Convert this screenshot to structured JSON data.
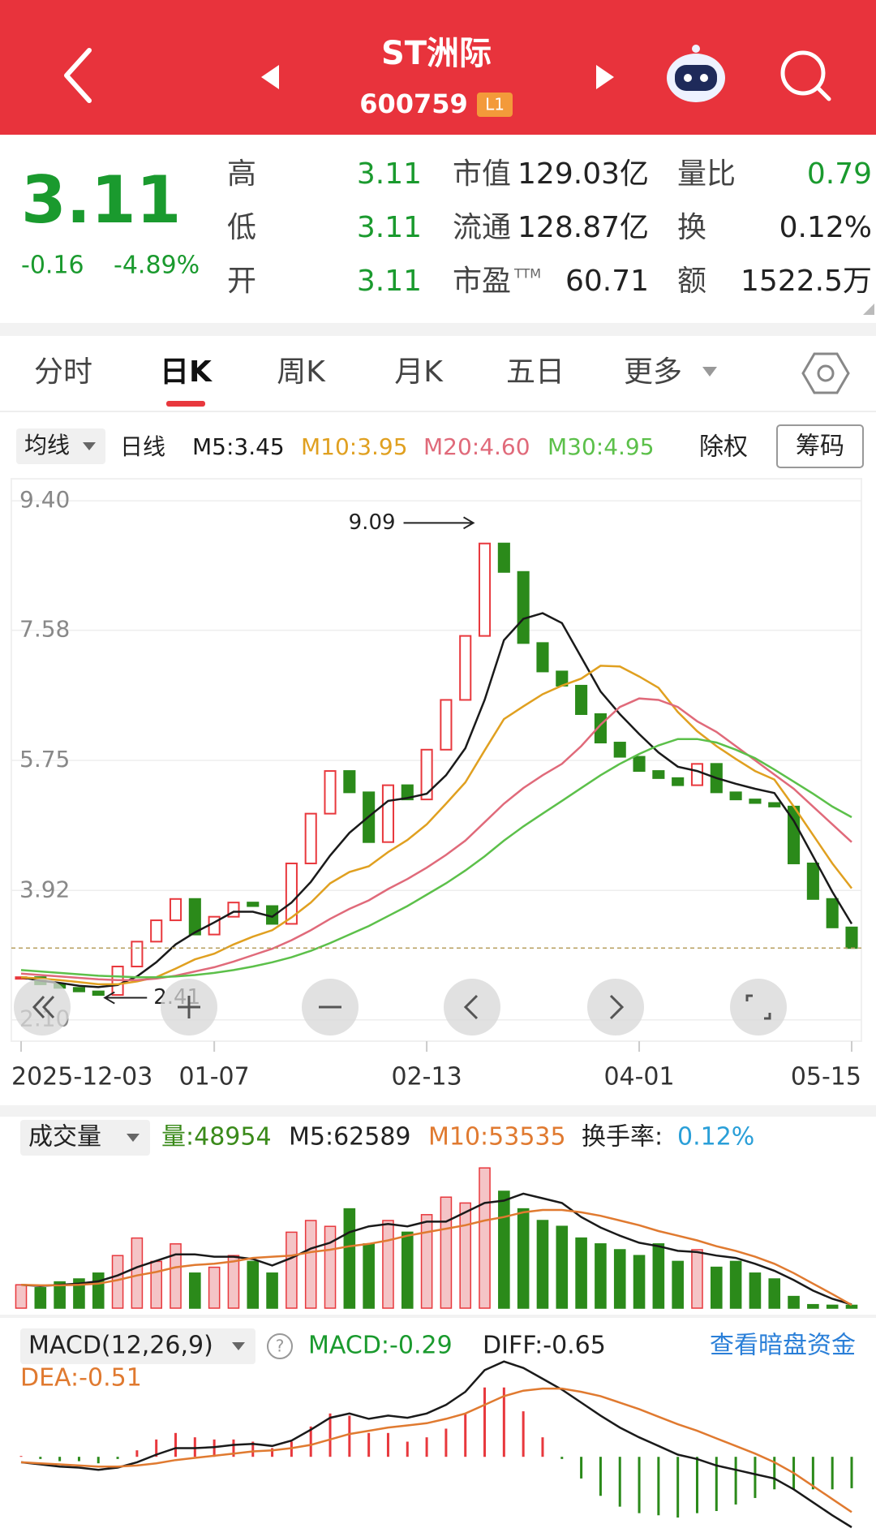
{
  "header": {
    "title": "ST洲际",
    "code": "600759",
    "level": "L1"
  },
  "quote": {
    "price": "3.11",
    "change": "-0.16",
    "change_pct": "-4.89%",
    "fields": [
      {
        "label": "高",
        "value": "3.11",
        "color": "#1a9a2e"
      },
      {
        "label": "低",
        "value": "3.11",
        "color": "#1a9a2e"
      },
      {
        "label": "开",
        "value": "3.11",
        "color": "#1a9a2e"
      },
      {
        "label": "市值",
        "value": "129.03亿",
        "color": "#222222"
      },
      {
        "label": "流通",
        "value": "128.87亿",
        "color": "#222222"
      },
      {
        "label": "市盈",
        "sup": "TTM",
        "value": "60.71",
        "color": "#222222"
      },
      {
        "label": "量比",
        "value": "0.79",
        "color": "#1a9a2e"
      },
      {
        "label": "换",
        "value": "0.12%",
        "color": "#222222"
      },
      {
        "label": "额",
        "value": "1522.5万",
        "color": "#222222"
      }
    ]
  },
  "tabs": [
    "分时",
    "日K",
    "周K",
    "月K",
    "五日",
    "更多"
  ],
  "active_tab": 1,
  "ma_bar": {
    "selector": "均线",
    "line": "日线",
    "rights": "除权",
    "chips": "筹码"
  },
  "chart_data": [
    {
      "type": "candlestick",
      "categories": [
        "2025-12-03",
        null,
        null,
        null,
        null,
        null,
        null,
        null,
        null,
        null,
        "01-07",
        null,
        null,
        null,
        null,
        null,
        null,
        null,
        null,
        null,
        null,
        "02-13",
        null,
        null,
        null,
        null,
        null,
        null,
        null,
        null,
        null,
        null,
        "04-01",
        null,
        null,
        null,
        null,
        null,
        null,
        null,
        null,
        null,
        null,
        "05-15"
      ],
      "close": [
        2.7,
        2.6,
        2.55,
        2.5,
        2.45,
        2.85,
        3.2,
        3.5,
        3.8,
        3.3,
        3.55,
        3.75,
        3.7,
        3.45,
        4.3,
        5.0,
        5.6,
        5.3,
        4.6,
        5.4,
        5.2,
        5.9,
        6.6,
        7.5,
        8.8,
        8.4,
        7.4,
        7.0,
        6.8,
        6.4,
        6.0,
        5.8,
        5.6,
        5.5,
        5.4,
        5.7,
        5.3,
        5.2,
        5.15,
        5.1,
        4.3,
        3.8,
        3.4,
        3.11
      ],
      "ylim": [
        1.8,
        9.71
      ],
      "yticks": [
        {
          "value": 9.4,
          "label": "9.40"
        },
        7.58,
        5.75,
        3.92,
        {
          "value": 2.1,
          "label": "2.10"
        }
      ],
      "high": 9.09,
      "low": 2.41,
      "series": [
        {
          "name": "M5",
          "label": "M5:3.45",
          "color": "#1a1a1a",
          "values": [
            2.7,
            2.65,
            2.62,
            2.58,
            2.56,
            2.59,
            2.71,
            2.91,
            3.16,
            3.33,
            3.47,
            3.62,
            3.62,
            3.55,
            3.75,
            4.04,
            4.41,
            4.73,
            4.96,
            5.18,
            5.22,
            5.28,
            5.54,
            5.92,
            6.6,
            7.44,
            7.74,
            7.82,
            7.68,
            7.2,
            6.72,
            6.4,
            6.12,
            5.86,
            5.66,
            5.6,
            5.5,
            5.42,
            5.35,
            5.29,
            4.9,
            4.4,
            3.9,
            3.45
          ]
        },
        {
          "name": "M10",
          "label": "M10:3.95",
          "color": "#e0a020",
          "values": [
            2.7,
            2.68,
            2.66,
            2.63,
            2.6,
            2.6,
            2.64,
            2.7,
            2.82,
            2.95,
            3.03,
            3.16,
            3.27,
            3.36,
            3.54,
            3.75,
            4.02,
            4.18,
            4.26,
            4.46,
            4.63,
            4.85,
            5.14,
            5.44,
            5.89,
            6.33,
            6.51,
            6.68,
            6.8,
            6.9,
            7.08,
            7.07,
            6.93,
            6.77,
            6.43,
            6.16,
            5.95,
            5.77,
            5.6,
            5.48,
            5.1,
            4.7,
            4.3,
            3.95
          ]
        },
        {
          "name": "M20",
          "label": "M20:4.60",
          "color": "#e06a7a",
          "values": [
            2.75,
            2.73,
            2.71,
            2.69,
            2.67,
            2.66,
            2.66,
            2.68,
            2.72,
            2.78,
            2.84,
            2.92,
            3.01,
            3.1,
            3.22,
            3.36,
            3.52,
            3.66,
            3.78,
            3.94,
            4.08,
            4.24,
            4.42,
            4.62,
            4.88,
            5.14,
            5.36,
            5.54,
            5.7,
            5.95,
            6.25,
            6.5,
            6.62,
            6.6,
            6.5,
            6.3,
            6.15,
            5.95,
            5.75,
            5.55,
            5.35,
            5.1,
            4.85,
            4.6
          ]
        },
        {
          "name": "M30",
          "label": "M30:4.95",
          "color": "#5cc04a",
          "values": [
            2.8,
            2.78,
            2.76,
            2.74,
            2.72,
            2.71,
            2.7,
            2.7,
            2.71,
            2.73,
            2.76,
            2.8,
            2.85,
            2.91,
            2.98,
            3.07,
            3.18,
            3.3,
            3.42,
            3.56,
            3.7,
            3.86,
            4.02,
            4.2,
            4.4,
            4.62,
            4.82,
            5.0,
            5.18,
            5.36,
            5.54,
            5.7,
            5.84,
            5.96,
            6.05,
            6.05,
            6.0,
            5.9,
            5.78,
            5.62,
            5.45,
            5.28,
            5.1,
            4.95
          ]
        }
      ]
    },
    {
      "type": "volume",
      "selector": "成交量",
      "header": [
        {
          "text": "量:48954",
          "color": "#3a8a1a"
        },
        {
          "text": "M5:62589",
          "color": "#222222"
        },
        {
          "text": "M10:53535",
          "color": "#e07a30"
        },
        {
          "text": "换手率:",
          "color": "#222222"
        },
        {
          "text": "0.12%",
          "color": "#2a9fd8"
        }
      ],
      "ylim": [
        0,
        2500000
      ],
      "values": [
        400000,
        350000,
        450000,
        500000,
        600000,
        900000,
        1200000,
        800000,
        1100000,
        600000,
        700000,
        900000,
        800000,
        600000,
        1300000,
        1500000,
        1400000,
        1700000,
        1100000,
        1500000,
        1300000,
        1600000,
        1900000,
        1800000,
        2400000,
        2000000,
        1700000,
        1500000,
        1400000,
        1200000,
        1100000,
        1000000,
        900000,
        1100000,
        800000,
        1000000,
        700000,
        800000,
        600000,
        500000,
        200000,
        60000,
        50000,
        48954
      ],
      "series": [
        {
          "name": "M5",
          "color": "#1a1a1a",
          "values": [
            400000,
            380000,
            400000,
            420000,
            460000,
            560000,
            700000,
            810000,
            920000,
            920000,
            880000,
            880000,
            840000,
            730000,
            860000,
            1020000,
            1120000,
            1300000,
            1400000,
            1440000,
            1400000,
            1480000,
            1480000,
            1640000,
            1800000,
            1840000,
            1960000,
            1880000,
            1800000,
            1560000,
            1380000,
            1240000,
            1120000,
            1060000,
            980000,
            960000,
            900000,
            860000,
            760000,
            640000,
            480000,
            300000,
            160000,
            62589
          ]
        },
        {
          "name": "M10",
          "color": "#e07a30",
          "values": [
            400000,
            390000,
            390000,
            400000,
            420000,
            480000,
            560000,
            620000,
            700000,
            740000,
            760000,
            800000,
            860000,
            880000,
            900000,
            960000,
            1000000,
            1060000,
            1100000,
            1160000,
            1240000,
            1300000,
            1360000,
            1420000,
            1500000,
            1560000,
            1640000,
            1680000,
            1680000,
            1640000,
            1580000,
            1500000,
            1420000,
            1320000,
            1240000,
            1160000,
            1060000,
            980000,
            880000,
            760000,
            600000,
            420000,
            240000,
            53535
          ]
        }
      ]
    },
    {
      "type": "macd",
      "selector": "MACD(12,26,9)",
      "help": "?",
      "link": "查看暗盘资金",
      "header": [
        {
          "text": "MACD:-0.29",
          "color": "#1a9a2e"
        },
        {
          "text": "DIFF:-0.65",
          "color": "#222222"
        },
        {
          "text": "DEA:-0.51",
          "color": "#e07a30"
        }
      ],
      "ylim": [
        -0.68,
        0.9
      ],
      "values": [
        0,
        -0.02,
        -0.04,
        -0.04,
        -0.06,
        -0.02,
        0.06,
        0.16,
        0.22,
        0.18,
        0.16,
        0.16,
        0.14,
        0.08,
        0.14,
        0.28,
        0.4,
        0.38,
        0.22,
        0.22,
        0.14,
        0.18,
        0.26,
        0.4,
        0.64,
        0.64,
        0.42,
        0.18,
        -0.02,
        -0.2,
        -0.36,
        -0.46,
        -0.52,
        -0.54,
        -0.56,
        -0.52,
        -0.5,
        -0.44,
        -0.38,
        -0.3,
        -0.3,
        -0.3,
        -0.3,
        -0.29
      ],
      "series": [
        {
          "name": "DIFF",
          "color": "#1a1a1a",
          "values": [
            -0.05,
            -0.07,
            -0.09,
            -0.1,
            -0.12,
            -0.1,
            -0.05,
            0.02,
            0.08,
            0.08,
            0.09,
            0.11,
            0.12,
            0.1,
            0.15,
            0.25,
            0.36,
            0.4,
            0.35,
            0.38,
            0.36,
            0.4,
            0.48,
            0.6,
            0.8,
            0.88,
            0.82,
            0.72,
            0.62,
            0.5,
            0.38,
            0.27,
            0.18,
            0.1,
            0.02,
            -0.02,
            -0.08,
            -0.12,
            -0.16,
            -0.2,
            -0.3,
            -0.42,
            -0.54,
            -0.65
          ]
        },
        {
          "name": "DEA",
          "color": "#e07a30",
          "values": [
            -0.05,
            -0.06,
            -0.07,
            -0.08,
            -0.09,
            -0.09,
            -0.08,
            -0.06,
            -0.03,
            -0.01,
            0.01,
            0.03,
            0.05,
            0.06,
            0.08,
            0.11,
            0.16,
            0.21,
            0.24,
            0.27,
            0.29,
            0.31,
            0.35,
            0.4,
            0.48,
            0.56,
            0.61,
            0.63,
            0.63,
            0.6,
            0.56,
            0.5,
            0.44,
            0.37,
            0.3,
            0.24,
            0.17,
            0.1,
            0.03,
            -0.05,
            -0.15,
            -0.27,
            -0.39,
            -0.51
          ]
        }
      ]
    }
  ]
}
